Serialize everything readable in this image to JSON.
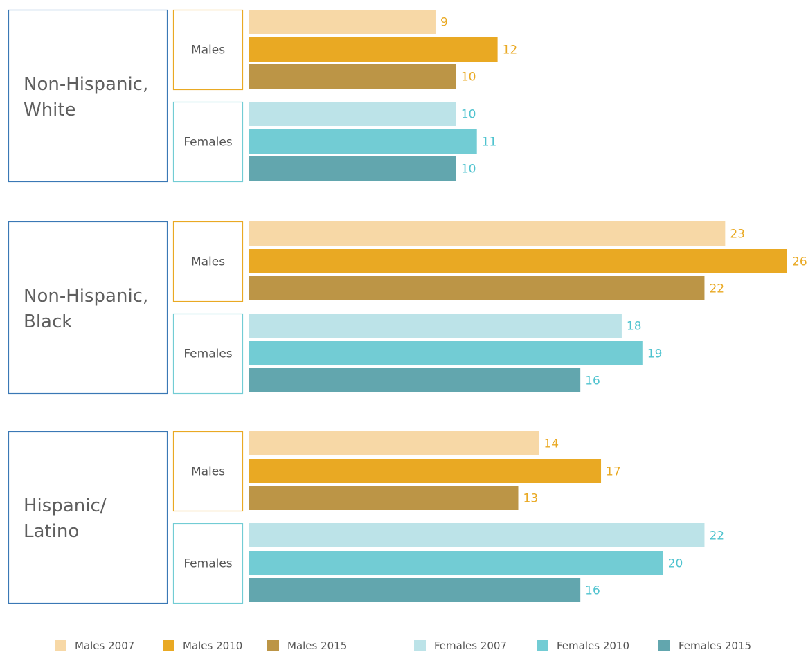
{
  "chart_data": {
    "type": "bar",
    "orientation": "horizontal",
    "groups": [
      {
        "label_lines": [
          "Non-Hispanic,",
          "White"
        ],
        "subgroups": [
          {
            "label": "Males",
            "values": [
              9,
              12,
              10
            ]
          },
          {
            "label": "Females",
            "values": [
              10,
              11,
              10
            ]
          }
        ]
      },
      {
        "label_lines": [
          "Non-Hispanic,",
          "Black"
        ],
        "subgroups": [
          {
            "label": "Males",
            "values": [
              23,
              26,
              22
            ]
          },
          {
            "label": "Females",
            "values": [
              18,
              19,
              16
            ]
          }
        ]
      },
      {
        "label_lines": [
          "Hispanic/",
          "Latino"
        ],
        "subgroups": [
          {
            "label": "Males",
            "values": [
              14,
              17,
              13
            ]
          },
          {
            "label": "Females",
            "values": [
              22,
              20,
              16
            ]
          }
        ]
      }
    ],
    "legend": [
      {
        "name": "Males 2007",
        "color": "#f7d8a6"
      },
      {
        "name": "Males 2010",
        "color": "#e9a923"
      },
      {
        "name": "Males 2015",
        "color": "#bc9546"
      },
      {
        "name": "Females 2007",
        "color": "#bce3e8"
      },
      {
        "name": "Females 2010",
        "color": "#72ccd4"
      },
      {
        "name": "Females 2015",
        "color": "#62a6ae"
      }
    ],
    "xlim": [
      0,
      26
    ],
    "legend_position": "bottom",
    "grid": false,
    "colors": {
      "group_box": "#3a78b5",
      "males_box": "#e9a923",
      "females_box": "#72ccd4",
      "males_value_text": "#e9a923",
      "females_value_text": "#4fc3cf"
    }
  }
}
